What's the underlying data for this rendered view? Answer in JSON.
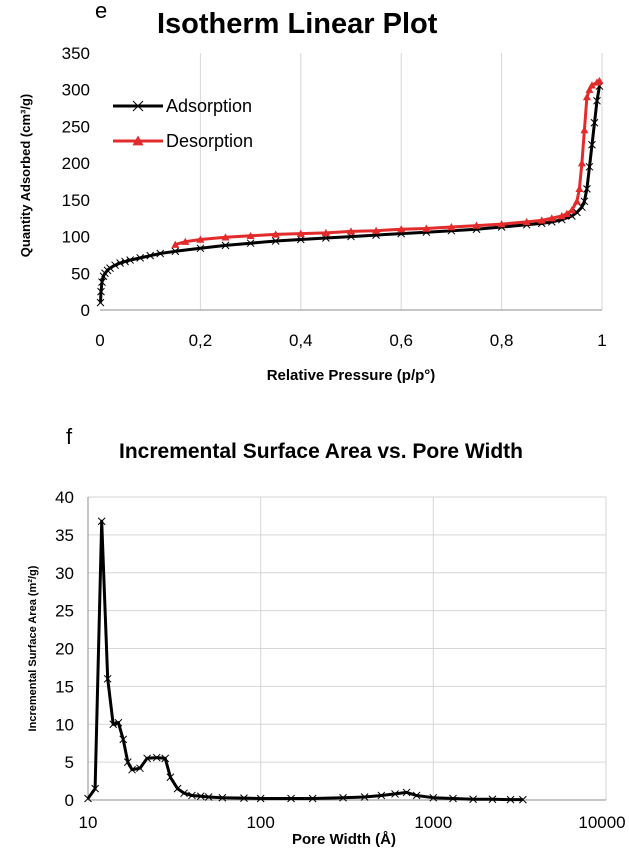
{
  "chart_data": [
    {
      "type": "line",
      "panel_label": "e",
      "title": "Isotherm Linear Plot",
      "xlabel": "Relative Pressure (p/p°)",
      "ylabel": "Quantity Adsorbed (cm³/g)",
      "xlim": [
        0,
        1
      ],
      "ylim": [
        0,
        350
      ],
      "xticks": [
        0,
        0.2,
        0.4,
        0.6,
        0.8,
        1
      ],
      "xtick_labels": [
        "0",
        "0,2",
        "0,4",
        "0,6",
        "0,8",
        "1"
      ],
      "yticks": [
        0,
        50,
        100,
        150,
        200,
        250,
        300,
        350
      ],
      "ytick_labels": [
        "0",
        "50",
        "100",
        "150",
        "200",
        "250",
        "300",
        "350"
      ],
      "grid": "vertical",
      "legend_position": "top-left",
      "series": [
        {
          "name": "Adsorption",
          "color": "#000000",
          "marker": "x",
          "points": [
            [
              0.001,
              10
            ],
            [
              0.002,
              25
            ],
            [
              0.004,
              38
            ],
            [
              0.007,
              46
            ],
            [
              0.01,
              50
            ],
            [
              0.015,
              54
            ],
            [
              0.02,
              57
            ],
            [
              0.03,
              61
            ],
            [
              0.04,
              64
            ],
            [
              0.05,
              66
            ],
            [
              0.06,
              68
            ],
            [
              0.08,
              71
            ],
            [
              0.1,
              74
            ],
            [
              0.12,
              77
            ],
            [
              0.15,
              80
            ],
            [
              0.2,
              84
            ],
            [
              0.25,
              88
            ],
            [
              0.3,
              91
            ],
            [
              0.35,
              94
            ],
            [
              0.4,
              96
            ],
            [
              0.45,
              98
            ],
            [
              0.5,
              100
            ],
            [
              0.55,
              102
            ],
            [
              0.6,
              104
            ],
            [
              0.65,
              106
            ],
            [
              0.7,
              108
            ],
            [
              0.75,
              110
            ],
            [
              0.8,
              113
            ],
            [
              0.85,
              116
            ],
            [
              0.88,
              118
            ],
            [
              0.9,
              120
            ],
            [
              0.92,
              123
            ],
            [
              0.94,
              128
            ],
            [
              0.95,
              133
            ],
            [
              0.96,
              140
            ],
            [
              0.965,
              148
            ],
            [
              0.97,
              165
            ],
            [
              0.975,
              195
            ],
            [
              0.98,
              225
            ],
            [
              0.985,
              255
            ],
            [
              0.99,
              285
            ],
            [
              0.995,
              305
            ]
          ]
        },
        {
          "name": "Desorption",
          "color": "#e32b2b",
          "marker": "triangle",
          "points": [
            [
              0.995,
              312
            ],
            [
              0.99,
              310
            ],
            [
              0.98,
              306
            ],
            [
              0.975,
              300
            ],
            [
              0.97,
              290
            ],
            [
              0.965,
              245
            ],
            [
              0.96,
              200
            ],
            [
              0.955,
              165
            ],
            [
              0.95,
              148
            ],
            [
              0.94,
              136
            ],
            [
              0.93,
              131
            ],
            [
              0.92,
              128
            ],
            [
              0.9,
              125
            ],
            [
              0.88,
              122
            ],
            [
              0.85,
              120
            ],
            [
              0.8,
              117
            ],
            [
              0.75,
              115
            ],
            [
              0.7,
              113
            ],
            [
              0.65,
              111
            ],
            [
              0.6,
              110
            ],
            [
              0.55,
              108
            ],
            [
              0.5,
              107
            ],
            [
              0.45,
              105
            ],
            [
              0.4,
              104
            ],
            [
              0.35,
              103
            ],
            [
              0.3,
              101
            ],
            [
              0.25,
              99
            ],
            [
              0.2,
              96
            ],
            [
              0.17,
              93
            ],
            [
              0.15,
              89
            ]
          ]
        }
      ]
    },
    {
      "type": "line",
      "panel_label": "f",
      "title": "Incremental Surface Area vs. Pore Width",
      "xlabel": "Pore Width (Å)",
      "ylabel": "Incremental Surface Area (m²/g)",
      "xscale": "log",
      "xlim": [
        10,
        10000
      ],
      "ylim": [
        0,
        40
      ],
      "xticks": [
        10,
        100,
        1000,
        10000
      ],
      "xtick_labels": [
        "10",
        "100",
        "1000",
        "10000"
      ],
      "yticks": [
        0,
        5,
        10,
        15,
        20,
        25,
        30,
        35,
        40
      ],
      "ytick_labels": [
        "0",
        "5",
        "10",
        "15",
        "20",
        "25",
        "30",
        "35",
        "40"
      ],
      "grid": "both",
      "series": [
        {
          "color": "#000000",
          "marker": "x",
          "points": [
            [
              10,
              0.2
            ],
            [
              11,
              1.5
            ],
            [
              12,
              36.8
            ],
            [
              13,
              16
            ],
            [
              14,
              10
            ],
            [
              15,
              10.2
            ],
            [
              16,
              8
            ],
            [
              17,
              5
            ],
            [
              18,
              4
            ],
            [
              20,
              4.2
            ],
            [
              22,
              5.5
            ],
            [
              25,
              5.6
            ],
            [
              28,
              5.5
            ],
            [
              30,
              3
            ],
            [
              33,
              1.5
            ],
            [
              36,
              0.9
            ],
            [
              40,
              0.6
            ],
            [
              45,
              0.5
            ],
            [
              50,
              0.4
            ],
            [
              60,
              0.3
            ],
            [
              80,
              0.25
            ],
            [
              100,
              0.2
            ],
            [
              150,
              0.2
            ],
            [
              200,
              0.2
            ],
            [
              300,
              0.3
            ],
            [
              400,
              0.4
            ],
            [
              500,
              0.6
            ],
            [
              600,
              0.8
            ],
            [
              700,
              1.0
            ],
            [
              800,
              0.6
            ],
            [
              1000,
              0.3
            ],
            [
              1300,
              0.2
            ],
            [
              1700,
              0.1
            ],
            [
              2200,
              0.1
            ],
            [
              2800,
              0.05
            ],
            [
              3300,
              0.05
            ]
          ]
        }
      ]
    }
  ]
}
